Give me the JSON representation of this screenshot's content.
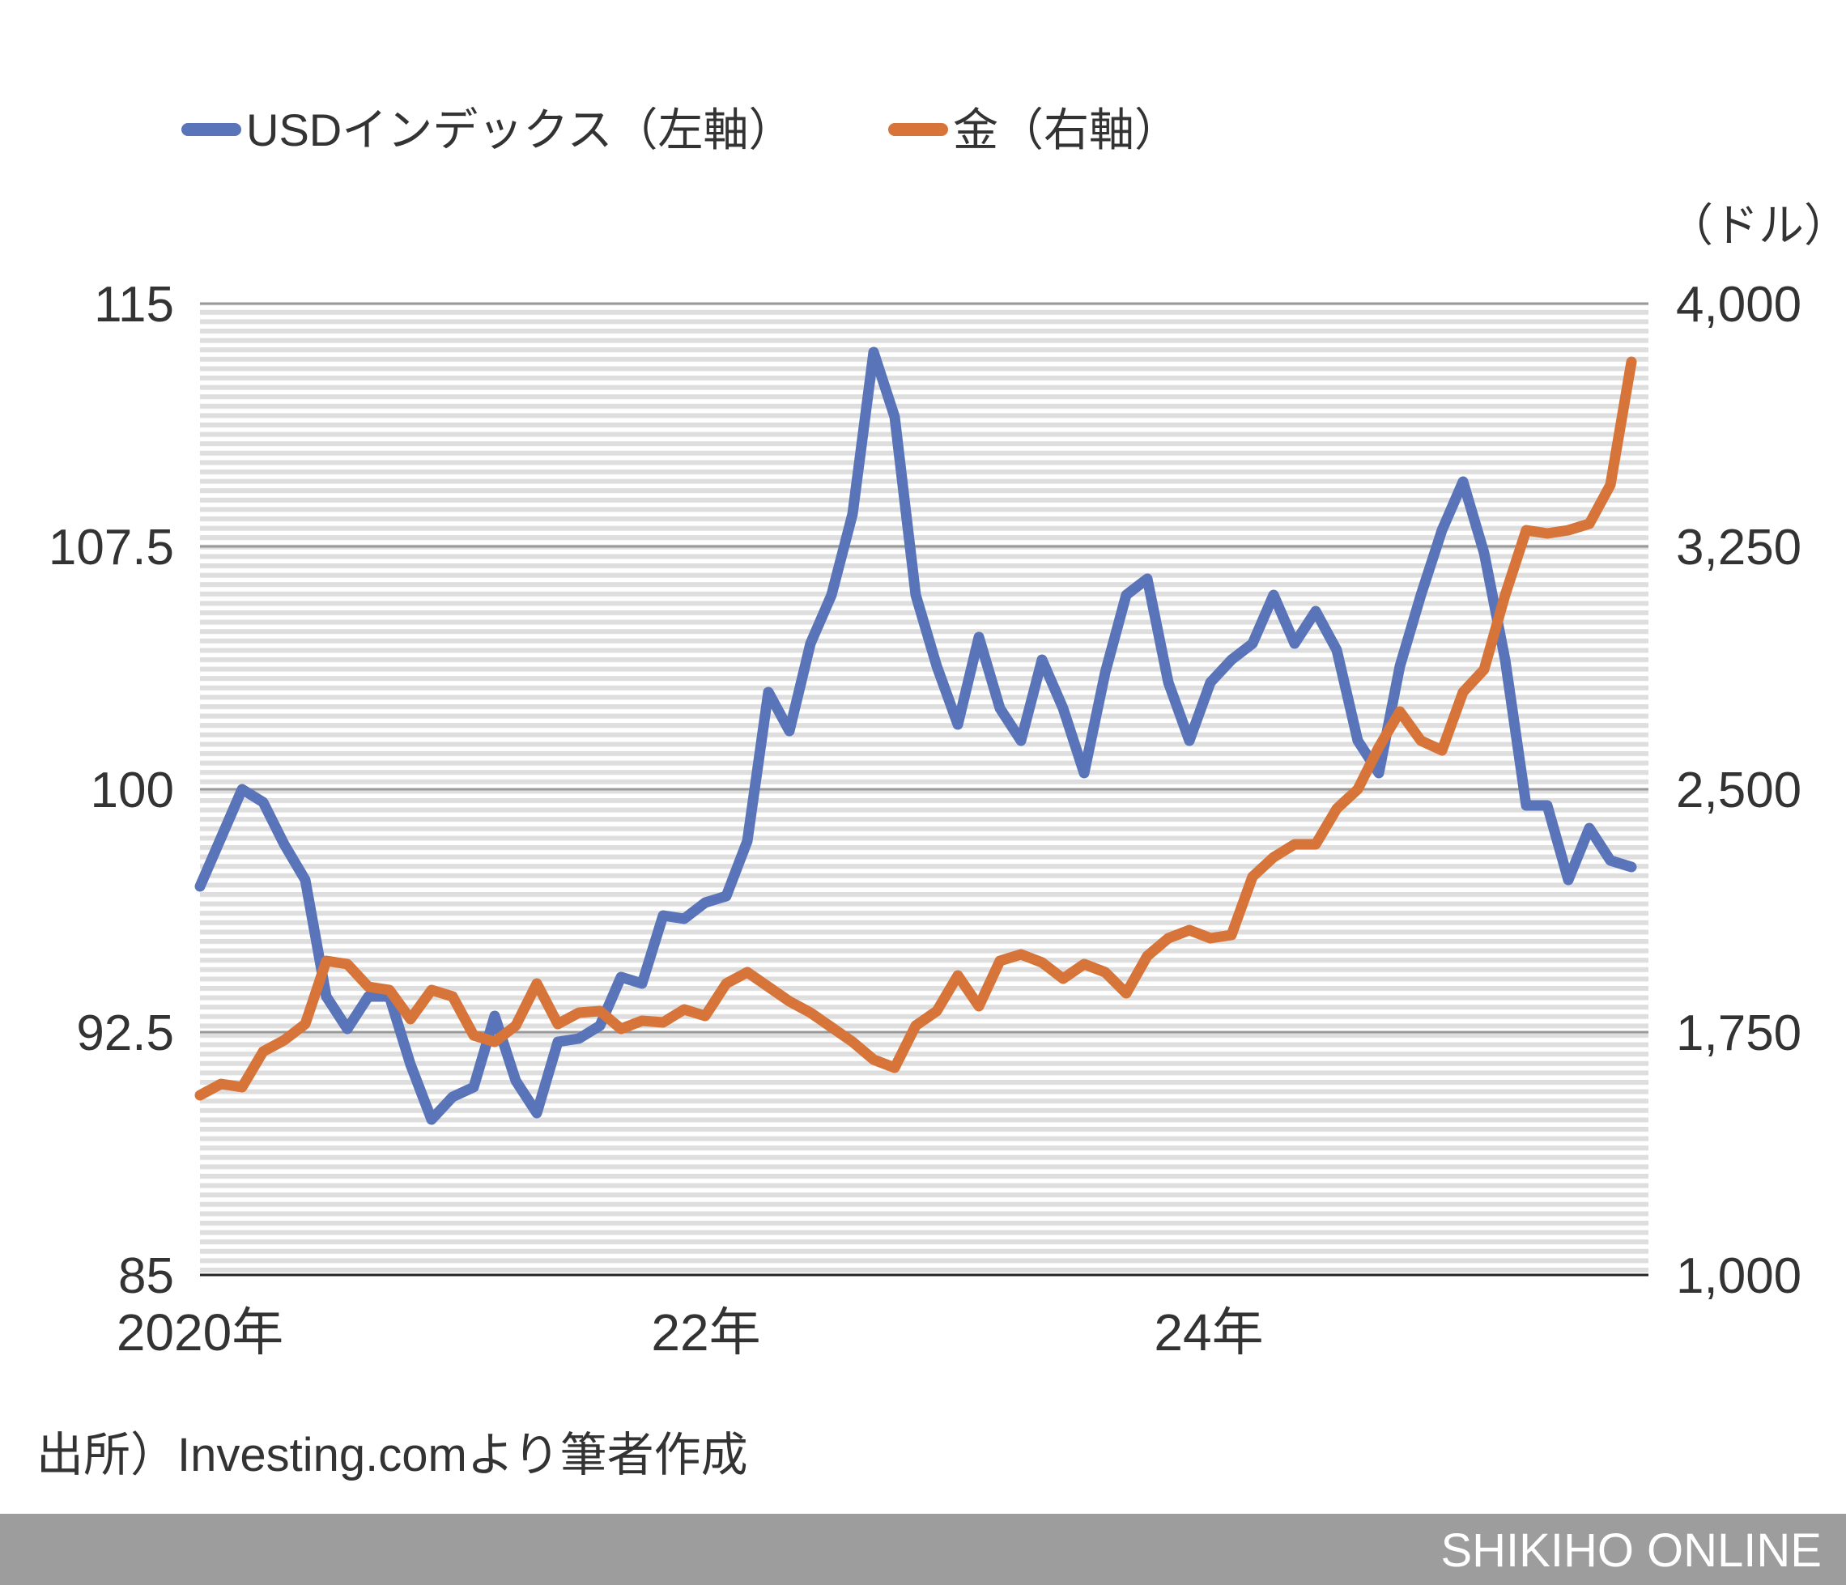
{
  "chart_data": {
    "type": "line",
    "title": "",
    "legend": [
      "USDインデックス（左軸）",
      "金（右軸）"
    ],
    "legend_position": "top-left",
    "grid": true,
    "x_tick_labels": [
      "2020年",
      "22年",
      "24年"
    ],
    "x_range": [
      "2020-01",
      "2025-09"
    ],
    "left_axis": {
      "ticks": [
        "115",
        "107.5",
        "100",
        "92.5",
        "85"
      ],
      "range": [
        85,
        115
      ]
    },
    "right_axis": {
      "unit": "（ドル）",
      "ticks": [
        "4,000",
        "3,250",
        "2,500",
        "1,750",
        "1,000"
      ],
      "range": [
        1000,
        4000
      ]
    },
    "x": [
      "2020-01",
      "2020-02",
      "2020-03",
      "2020-04",
      "2020-05",
      "2020-06",
      "2020-07",
      "2020-08",
      "2020-09",
      "2020-10",
      "2020-11",
      "2020-12",
      "2021-01",
      "2021-02",
      "2021-03",
      "2021-04",
      "2021-05",
      "2021-06",
      "2021-07",
      "2021-08",
      "2021-09",
      "2021-10",
      "2021-11",
      "2021-12",
      "2022-01",
      "2022-02",
      "2022-03",
      "2022-04",
      "2022-05",
      "2022-06",
      "2022-07",
      "2022-08",
      "2022-09",
      "2022-10",
      "2022-11",
      "2022-12",
      "2023-01",
      "2023-02",
      "2023-03",
      "2023-04",
      "2023-05",
      "2023-06",
      "2023-07",
      "2023-08",
      "2023-09",
      "2023-10",
      "2023-11",
      "2023-12",
      "2024-01",
      "2024-02",
      "2024-03",
      "2024-04",
      "2024-05",
      "2024-06",
      "2024-07",
      "2024-08",
      "2024-09",
      "2024-10",
      "2024-11",
      "2024-12",
      "2025-01",
      "2025-02",
      "2025-03",
      "2025-04",
      "2025-05",
      "2025-06",
      "2025-07",
      "2025-08",
      "2025-09"
    ],
    "series": [
      {
        "name": "USDインデックス（左軸）",
        "axis": "left",
        "color": "#5a74b9",
        "values": [
          97.0,
          98.5,
          100.0,
          99.6,
          98.3,
          97.2,
          93.6,
          92.6,
          93.6,
          93.6,
          91.5,
          89.8,
          90.5,
          90.8,
          93.0,
          91.0,
          90.0,
          92.2,
          92.3,
          92.7,
          94.2,
          94.0,
          96.1,
          96.0,
          96.5,
          96.7,
          98.4,
          103.0,
          101.8,
          104.5,
          106.0,
          108.5,
          113.5,
          111.5,
          106.0,
          103.8,
          102.0,
          104.7,
          102.5,
          101.5,
          104.0,
          102.5,
          100.5,
          103.6,
          106.0,
          106.5,
          103.3,
          101.5,
          103.3,
          104.0,
          104.5,
          106.0,
          104.5,
          105.5,
          104.3,
          101.5,
          100.5,
          103.8,
          106.0,
          108.0,
          109.5,
          107.3,
          104.0,
          99.5,
          99.5,
          97.2,
          98.8,
          97.8,
          97.6
        ]
      },
      {
        "name": "金（右軸）",
        "axis": "right",
        "color": "#d7743a",
        "values": [
          1555,
          1590,
          1580,
          1690,
          1725,
          1775,
          1970,
          1960,
          1890,
          1880,
          1790,
          1880,
          1860,
          1740,
          1720,
          1770,
          1900,
          1775,
          1810,
          1815,
          1760,
          1785,
          1780,
          1820,
          1800,
          1900,
          1935,
          1890,
          1845,
          1810,
          1765,
          1720,
          1665,
          1640,
          1770,
          1815,
          1925,
          1830,
          1970,
          1990,
          1965,
          1915,
          1960,
          1935,
          1870,
          1985,
          2040,
          2065,
          2040,
          2050,
          2230,
          2290,
          2330,
          2330,
          2440,
          2500,
          2630,
          2740,
          2650,
          2620,
          2800,
          2870,
          3100,
          3300,
          3290,
          3300,
          3320,
          3440,
          3820
        ]
      }
    ]
  },
  "source": "出所）Investing.comより筆者作成",
  "footer": "SHIKIHO ONLINE"
}
